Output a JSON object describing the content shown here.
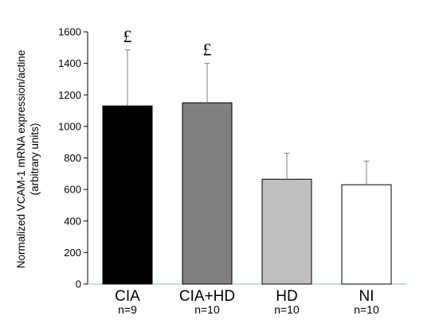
{
  "chart_data": {
    "type": "bar",
    "categories": [
      "CIA",
      "CIA+HD",
      "HD",
      "NI"
    ],
    "sample_sizes": [
      "n=9",
      "n=10",
      "n=10",
      "n=10"
    ],
    "values": [
      1130,
      1150,
      665,
      630
    ],
    "error_upper": [
      1485,
      1400,
      830,
      780
    ],
    "bar_colors": [
      "#000000",
      "#808080",
      "#c0c0c0",
      "#ffffff"
    ],
    "annotations": [
      "£",
      "£",
      "",
      ""
    ],
    "ylabel_line1": "Normalized VCAM-1 mRNA expression/actine",
    "ylabel_line2": "(arbitrary units)",
    "xlabel": "",
    "title": "",
    "ylim": [
      0,
      1600
    ],
    "yticks": [
      0,
      200,
      400,
      600,
      800,
      1000,
      1200,
      1400,
      1600
    ],
    "grid": false,
    "axis_color": "#8eb4e3"
  }
}
